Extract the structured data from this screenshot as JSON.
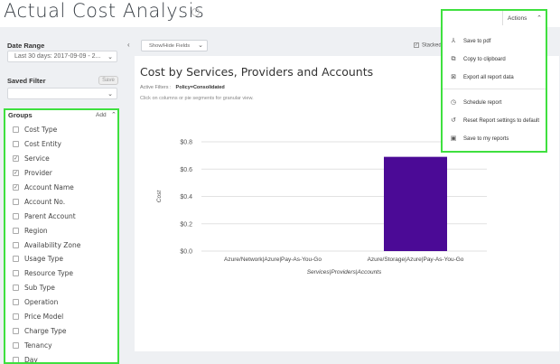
{
  "page": {
    "title": "Actual Cost Analysis"
  },
  "sidebar": {
    "date_range": {
      "label": "Date Range",
      "value": "Last 30 days:  2017-09-09 - 2..."
    },
    "saved_filter": {
      "label": "Saved Filter",
      "save_label": "Save",
      "value": ""
    },
    "groups": {
      "label": "Groups",
      "add_label": "Add",
      "items": [
        {
          "label": "Cost Type",
          "checked": false
        },
        {
          "label": "Cost Entity",
          "checked": false
        },
        {
          "label": "Service",
          "checked": true
        },
        {
          "label": "Provider",
          "checked": true
        },
        {
          "label": "Account Name",
          "checked": true
        },
        {
          "label": "Account No.",
          "checked": false
        },
        {
          "label": "Parent Account",
          "checked": false
        },
        {
          "label": "Region",
          "checked": false
        },
        {
          "label": "Availability Zone",
          "checked": false
        },
        {
          "label": "Usage Type",
          "checked": false
        },
        {
          "label": "Resource Type",
          "checked": false
        },
        {
          "label": "Sub Type",
          "checked": false
        },
        {
          "label": "Operation",
          "checked": false
        },
        {
          "label": "Price Model",
          "checked": false
        },
        {
          "label": "Charge Type",
          "checked": false
        },
        {
          "label": "Tenancy",
          "checked": false
        },
        {
          "label": "Day",
          "checked": false
        }
      ]
    }
  },
  "toolbar": {
    "show_hide_label": "Show/Hide Fields",
    "stacked_label": "Stacked",
    "stacked_checked": true
  },
  "chart_card": {
    "title": "Cost by Services, Providers and Accounts",
    "filters_label": "Active Filters :",
    "filters_value": "Policy=Consolidated",
    "hint": "Click on columns or pie segments for granular view."
  },
  "actions": {
    "button_label": "Actions",
    "items": [
      {
        "label": "Save to pdf",
        "icon": "pdf-icon",
        "glyph": "⅄"
      },
      {
        "label": "Copy to clipboard",
        "icon": "clipboard-icon",
        "glyph": "⧉"
      },
      {
        "label": "Export all report data",
        "icon": "export-icon",
        "glyph": "⊠"
      },
      {
        "label": "Schedule report",
        "icon": "clock-icon",
        "glyph": "◷"
      },
      {
        "label": "Reset Report settings to default",
        "icon": "reset-icon",
        "glyph": "↺"
      },
      {
        "label": "Save to my reports",
        "icon": "save-icon",
        "glyph": "▣"
      }
    ]
  },
  "colors": {
    "accent": "#3fe03f",
    "bar": "#4b0a96"
  },
  "chart_data": {
    "type": "bar",
    "categories": [
      "Azure/Network|Azure|Pay-As-You-Go",
      "Azure/Storage|Azure|Pay-As-You-Go"
    ],
    "values": [
      0.0,
      0.69
    ],
    "title": "",
    "xlabel": "Services|Providers|Accounts",
    "ylabel": "Cost",
    "ylim": [
      0,
      0.8
    ],
    "yticks": [
      {
        "value": 0.0,
        "label": "$0.0"
      },
      {
        "value": 0.2,
        "label": "$0.2"
      },
      {
        "value": 0.4,
        "label": "$0.4"
      },
      {
        "value": 0.6,
        "label": "$0.6"
      },
      {
        "value": 0.8,
        "label": "$0.8"
      }
    ],
    "grid": true,
    "legend": "none"
  }
}
